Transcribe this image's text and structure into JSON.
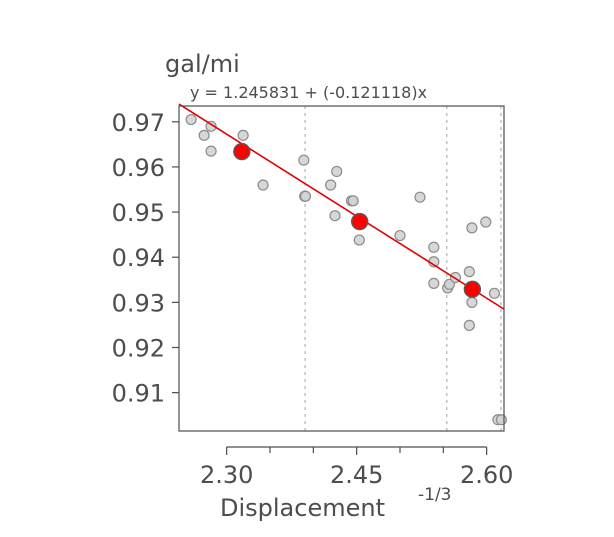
{
  "chart_data": {
    "type": "scatter",
    "title": "",
    "ylabel": "gal/mi",
    "xlabel": "Displacement",
    "xlabel_superscript": "-1/3",
    "annotation": "y = 1.245831 + (-0.121118)x",
    "xlim": [
      2.245,
      2.62
    ],
    "ylim": [
      0.9015,
      0.9735
    ],
    "x_ticks": [
      2.3,
      2.45,
      2.6
    ],
    "x_tick_labels": [
      "2.30",
      "2.45",
      "2.60"
    ],
    "x_minor_ticks": [
      2.35,
      2.4,
      2.5,
      2.55
    ],
    "y_ticks": [
      0.91,
      0.92,
      0.93,
      0.94,
      0.95,
      0.96,
      0.97
    ],
    "y_tick_labels": [
      "0.91",
      "0.92",
      "0.93",
      "0.94",
      "0.95",
      "0.96",
      "0.97"
    ],
    "vertical_reference_lines": [
      2.3905,
      2.554,
      2.6165
    ],
    "fit_line": {
      "intercept": 1.245831,
      "slope": -0.121118
    },
    "points": [
      {
        "x": 2.259,
        "y": 0.9705
      },
      {
        "x": 2.274,
        "y": 0.967
      },
      {
        "x": 2.282,
        "y": 0.969
      },
      {
        "x": 2.282,
        "y": 0.9635
      },
      {
        "x": 2.319,
        "y": 0.967
      },
      {
        "x": 2.342,
        "y": 0.956
      },
      {
        "x": 2.389,
        "y": 0.9615
      },
      {
        "x": 2.39,
        "y": 0.9535
      },
      {
        "x": 2.391,
        "y": 0.9535
      },
      {
        "x": 2.42,
        "y": 0.956
      },
      {
        "x": 2.427,
        "y": 0.959
      },
      {
        "x": 2.425,
        "y": 0.9492
      },
      {
        "x": 2.444,
        "y": 0.9525
      },
      {
        "x": 2.446,
        "y": 0.9525
      },
      {
        "x": 2.453,
        "y": 0.9438
      },
      {
        "x": 2.5,
        "y": 0.9448
      },
      {
        "x": 2.523,
        "y": 0.9533
      },
      {
        "x": 2.539,
        "y": 0.9422
      },
      {
        "x": 2.539,
        "y": 0.939
      },
      {
        "x": 2.539,
        "y": 0.9342
      },
      {
        "x": 2.555,
        "y": 0.9332
      },
      {
        "x": 2.557,
        "y": 0.934
      },
      {
        "x": 2.564,
        "y": 0.9355
      },
      {
        "x": 2.58,
        "y": 0.9368
      },
      {
        "x": 2.58,
        "y": 0.9249
      },
      {
        "x": 2.583,
        "y": 0.9465
      },
      {
        "x": 2.583,
        "y": 0.93
      },
      {
        "x": 2.599,
        "y": 0.9478
      },
      {
        "x": 2.609,
        "y": 0.932
      },
      {
        "x": 2.613,
        "y": 0.904
      },
      {
        "x": 2.617,
        "y": 0.904
      }
    ],
    "group_means": [
      {
        "x": 2.3175,
        "y": 0.9634
      },
      {
        "x": 2.4535,
        "y": 0.9479
      },
      {
        "x": 2.5835,
        "y": 0.9329
      }
    ],
    "colors": {
      "point_fill": "#d3d3d3",
      "point_stroke": "#8c8c8c",
      "mean_fill": "#ff0000",
      "mean_stroke": "#5a5a5a",
      "fit_line": "#e00000",
      "reference_line": "#b0b0b0",
      "axis": "#4d4d4d"
    }
  }
}
